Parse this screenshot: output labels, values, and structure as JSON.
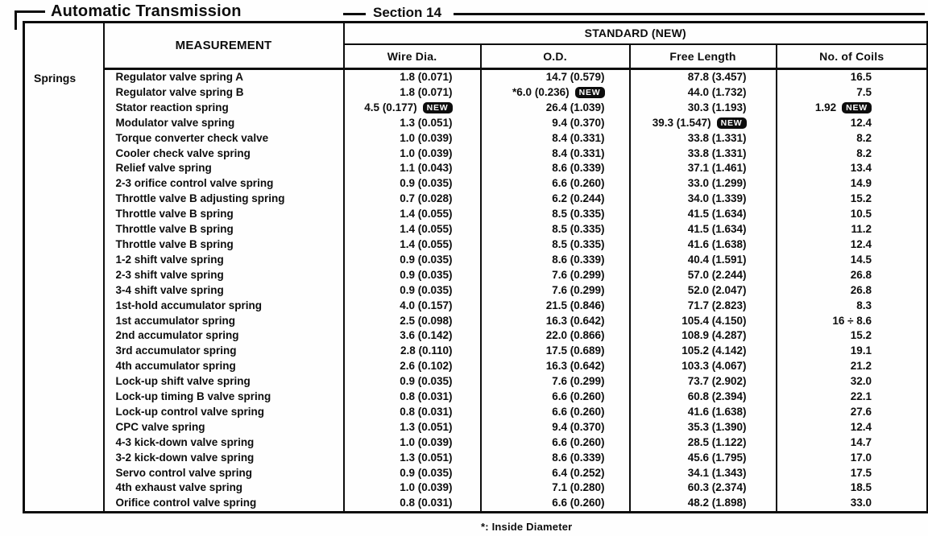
{
  "header": {
    "left_title": "Automatic Transmission",
    "section_title": "Section 14"
  },
  "table": {
    "group_label": "Springs",
    "measurement_header": "MEASUREMENT",
    "standard_header": "STANDARD (NEW)",
    "columns": [
      "Wire Dia.",
      "O.D.",
      "Free Length",
      "No. of Coils"
    ],
    "new_badge_label": "NEW",
    "rows": [
      {
        "name": "Regulator valve spring A",
        "wire_dia": "1.8 (0.071)",
        "od": "14.7 (0.579)",
        "free_length": "87.8 (3.457)",
        "coils": "16.5"
      },
      {
        "name": "Regulator valve spring B",
        "wire_dia": "1.8 (0.071)",
        "od": "*6.0 (0.236)",
        "od_new": true,
        "free_length": "44.0 (1.732)",
        "coils": "7.5"
      },
      {
        "name": "Stator reaction spring",
        "wire_dia": "4.5 (0.177)",
        "wire_dia_new": true,
        "od": "26.4 (1.039)",
        "free_length": "30.3 (1.193)",
        "coils": "1.92",
        "coils_new": true
      },
      {
        "name": "Modulator valve spring",
        "wire_dia": "1.3 (0.051)",
        "od": "9.4 (0.370)",
        "free_length": "39.3 (1.547)",
        "free_length_new": true,
        "coils": "12.4"
      },
      {
        "name": "Torque converter check valve",
        "wire_dia": "1.0 (0.039)",
        "od": "8.4 (0.331)",
        "free_length": "33.8 (1.331)",
        "coils": "8.2"
      },
      {
        "name": "Cooler check valve spring",
        "wire_dia": "1.0 (0.039)",
        "od": "8.4 (0.331)",
        "free_length": "33.8 (1.331)",
        "coils": "8.2"
      },
      {
        "name": "Relief valve spring",
        "wire_dia": "1.1 (0.043)",
        "od": "8.6 (0.339)",
        "free_length": "37.1 (1.461)",
        "coils": "13.4"
      },
      {
        "name": "2-3 orifice control valve spring",
        "wire_dia": "0.9 (0.035)",
        "od": "6.6 (0.260)",
        "free_length": "33.0 (1.299)",
        "coils": "14.9"
      },
      {
        "name": "Throttle valve B adjusting spring",
        "wire_dia": "0.7 (0.028)",
        "od": "6.2 (0.244)",
        "free_length": "34.0 (1.339)",
        "coils": "15.2"
      },
      {
        "name": "Throttle valve B spring",
        "wire_dia": "1.4 (0.055)",
        "od": "8.5 (0.335)",
        "free_length": "41.5 (1.634)",
        "coils": "10.5"
      },
      {
        "name": "Throttle valve B spring",
        "wire_dia": "1.4 (0.055)",
        "od": "8.5 (0.335)",
        "free_length": "41.5 (1.634)",
        "coils": "11.2"
      },
      {
        "name": "Throttle valve B spring",
        "wire_dia": "1.4 (0.055)",
        "od": "8.5 (0.335)",
        "free_length": "41.6 (1.638)",
        "coils": "12.4"
      },
      {
        "name": "1-2 shift valve spring",
        "wire_dia": "0.9 (0.035)",
        "od": "8.6 (0.339)",
        "free_length": "40.4 (1.591)",
        "coils": "14.5"
      },
      {
        "name": "2-3 shift valve spring",
        "wire_dia": "0.9 (0.035)",
        "od": "7.6 (0.299)",
        "free_length": "57.0 (2.244)",
        "coils": "26.8"
      },
      {
        "name": "3-4 shift valve spring",
        "wire_dia": "0.9 (0.035)",
        "od": "7.6 (0.299)",
        "free_length": "52.0 (2.047)",
        "coils": "26.8"
      },
      {
        "name": "1st-hold accumulator spring",
        "wire_dia": "4.0 (0.157)",
        "od": "21.5 (0.846)",
        "free_length": "71.7 (2.823)",
        "coils": "8.3"
      },
      {
        "name": "1st accumulator spring",
        "wire_dia": "2.5 (0.098)",
        "od": "16.3 (0.642)",
        "free_length": "105.4 (4.150)",
        "coils": "16 ÷ 8.6"
      },
      {
        "name": "2nd accumulator spring",
        "wire_dia": "3.6 (0.142)",
        "od": "22.0 (0.866)",
        "free_length": "108.9 (4.287)",
        "coils": "15.2"
      },
      {
        "name": "3rd accumulator spring",
        "wire_dia": "2.8 (0.110)",
        "od": "17.5 (0.689)",
        "free_length": "105.2 (4.142)",
        "coils": "19.1"
      },
      {
        "name": "4th accumulator spring",
        "wire_dia": "2.6 (0.102)",
        "od": "16.3 (0.642)",
        "free_length": "103.3 (4.067)",
        "coils": "21.2"
      },
      {
        "name": "Lock-up shift valve spring",
        "wire_dia": "0.9 (0.035)",
        "od": "7.6 (0.299)",
        "free_length": "73.7 (2.902)",
        "coils": "32.0"
      },
      {
        "name": "Lock-up timing B valve spring",
        "wire_dia": "0.8 (0.031)",
        "od": "6.6 (0.260)",
        "free_length": "60.8 (2.394)",
        "coils": "22.1"
      },
      {
        "name": "Lock-up control valve spring",
        "wire_dia": "0.8 (0.031)",
        "od": "6.6 (0.260)",
        "free_length": "41.6 (1.638)",
        "coils": "27.6"
      },
      {
        "name": "CPC valve spring",
        "wire_dia": "1.3 (0.051)",
        "od": "9.4 (0.370)",
        "free_length": "35.3 (1.390)",
        "coils": "12.4"
      },
      {
        "name": "4-3 kick-down valve spring",
        "wire_dia": "1.0 (0.039)",
        "od": "6.6 (0.260)",
        "free_length": "28.5 (1.122)",
        "coils": "14.7"
      },
      {
        "name": "3-2 kick-down valve spring",
        "wire_dia": "1.3 (0.051)",
        "od": "8.6 (0.339)",
        "free_length": "45.6 (1.795)",
        "coils": "17.0"
      },
      {
        "name": "Servo control valve spring",
        "wire_dia": "0.9 (0.035)",
        "od": "6.4 (0.252)",
        "free_length": "34.1 (1.343)",
        "coils": "17.5"
      },
      {
        "name": "4th exhaust valve spring",
        "wire_dia": "1.0 (0.039)",
        "od": "7.1 (0.280)",
        "free_length": "60.3 (2.374)",
        "coils": "18.5"
      },
      {
        "name": "Orifice control valve spring",
        "wire_dia": "0.8 (0.031)",
        "od": "6.6 (0.260)",
        "free_length": "48.2 (1.898)",
        "coils": "33.0"
      }
    ]
  },
  "footer": {
    "note": "*: Inside Diameter"
  }
}
